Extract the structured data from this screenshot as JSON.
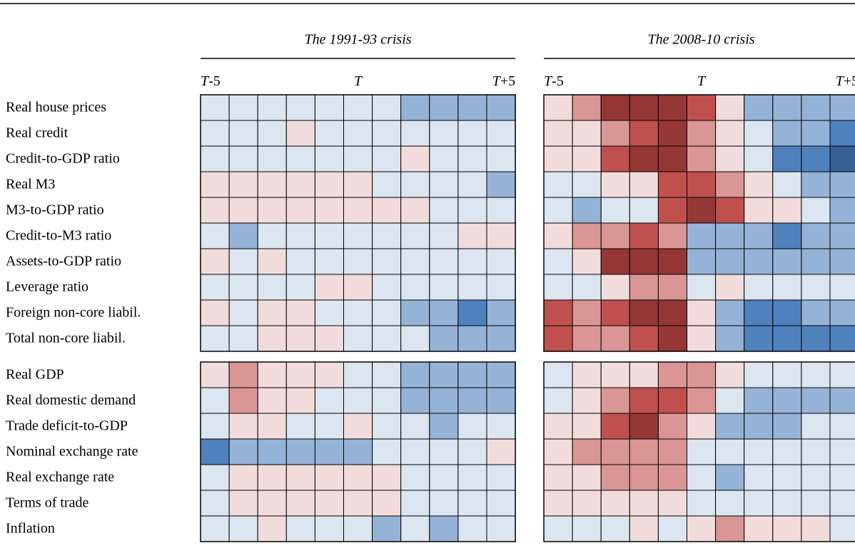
{
  "chart_data": {
    "type": "heatmap",
    "colors": {
      "-4": "#366092",
      "-3": "#4f81bd",
      "-2": "#95b3d7",
      "-1": "#dce6f1",
      "1": "#f2dcdb",
      "2": "#d99694",
      "3": "#c0504d",
      "4": "#953735"
    },
    "row_groups": [
      [
        "Real house prices",
        "Real credit",
        "Credit-to-GDP ratio",
        "Real M3",
        "M3-to-GDP ratio",
        "Credit-to-M3 ratio",
        "Assets-to-GDP ratio",
        "Leverage ratio",
        "Foreign non-core liabil.",
        "Total non-core liabil."
      ],
      [
        "Real GDP",
        "Real domestic demand",
        "Trade deficit-to-GDP",
        "Nominal exchange rate",
        "Real exchange rate",
        "Terms of trade",
        "Inflation"
      ]
    ],
    "panels": [
      {
        "title": "The 1991-93 crisis",
        "columns": [
          "T-5",
          null,
          null,
          null,
          null,
          "T",
          null,
          null,
          null,
          null,
          "T+5"
        ],
        "values": [
          [
            [
              -1,
              -1,
              -1,
              -1,
              -1,
              -1,
              -1,
              -2,
              -2,
              -2,
              -2
            ],
            [
              -1,
              -1,
              -1,
              1,
              -1,
              -1,
              -1,
              -1,
              -1,
              -1,
              -1
            ],
            [
              -1,
              -1,
              -1,
              -1,
              -1,
              -1,
              -1,
              1,
              -1,
              -1,
              -1
            ],
            [
              1,
              1,
              1,
              1,
              1,
              1,
              -1,
              -1,
              -1,
              -1,
              -2
            ],
            [
              1,
              1,
              1,
              1,
              1,
              1,
              1,
              1,
              -1,
              -1,
              -1
            ],
            [
              -1,
              -2,
              -1,
              -1,
              -1,
              -1,
              -1,
              -1,
              -1,
              1,
              1
            ],
            [
              1,
              -1,
              1,
              -1,
              -1,
              -1,
              -1,
              -1,
              -1,
              -1,
              -1
            ],
            [
              -1,
              -1,
              -1,
              -1,
              1,
              1,
              -1,
              -1,
              -1,
              -1,
              -1
            ],
            [
              1,
              -1,
              1,
              1,
              -1,
              -1,
              -1,
              -2,
              -2,
              -3,
              -2
            ],
            [
              -1,
              -1,
              1,
              1,
              1,
              -1,
              -1,
              -1,
              -2,
              -2,
              -2
            ]
          ],
          [
            [
              1,
              2,
              1,
              1,
              1,
              -1,
              -1,
              -2,
              -2,
              -2,
              -2
            ],
            [
              -1,
              2,
              1,
              1,
              -1,
              -1,
              -1,
              -2,
              -2,
              -2,
              -2
            ],
            [
              -1,
              1,
              1,
              -1,
              -1,
              1,
              -1,
              -1,
              -2,
              -1,
              -1
            ],
            [
              -3,
              -2,
              -2,
              -2,
              -2,
              -2,
              -1,
              -1,
              -1,
              -1,
              1
            ],
            [
              -1,
              1,
              1,
              1,
              1,
              1,
              1,
              -1,
              -1,
              -1,
              -1
            ],
            [
              -1,
              1,
              1,
              1,
              1,
              1,
              1,
              -1,
              -1,
              -1,
              -1
            ],
            [
              -1,
              -1,
              1,
              -1,
              -1,
              -1,
              -2,
              -1,
              -2,
              -1,
              -1
            ]
          ]
        ]
      },
      {
        "title": "The 2008-10 crisis",
        "columns": [
          "T-5",
          null,
          null,
          null,
          null,
          "T",
          null,
          null,
          null,
          null,
          "T+5"
        ],
        "values": [
          [
            [
              1,
              2,
              4,
              4,
              4,
              3,
              1,
              -2,
              -2,
              -2,
              -2
            ],
            [
              1,
              1,
              2,
              3,
              4,
              2,
              1,
              -1,
              -2,
              -2,
              -3
            ],
            [
              1,
              1,
              3,
              4,
              4,
              2,
              1,
              -1,
              -3,
              -3,
              -4
            ],
            [
              -1,
              -1,
              1,
              1,
              3,
              3,
              2,
              1,
              -1,
              -2,
              -2
            ],
            [
              -1,
              -2,
              -1,
              -1,
              3,
              4,
              3,
              1,
              1,
              -1,
              -2
            ],
            [
              1,
              2,
              2,
              3,
              2,
              -2,
              -2,
              -2,
              -3,
              -2,
              -2
            ],
            [
              -1,
              1,
              4,
              4,
              4,
              -2,
              -2,
              -2,
              -2,
              -2,
              -2
            ],
            [
              -1,
              -1,
              1,
              2,
              2,
              -1,
              1,
              -1,
              -1,
              -1,
              -1
            ],
            [
              3,
              2,
              3,
              4,
              4,
              1,
              -2,
              -3,
              -3,
              -2,
              -2
            ],
            [
              3,
              2,
              2,
              3,
              4,
              1,
              -2,
              -3,
              -3,
              -3,
              -3
            ]
          ],
          [
            [
              -1,
              1,
              1,
              1,
              2,
              2,
              1,
              -1,
              -1,
              -1,
              -1
            ],
            [
              -1,
              1,
              2,
              3,
              3,
              2,
              -1,
              -2,
              -2,
              -2,
              -2
            ],
            [
              1,
              1,
              3,
              4,
              2,
              1,
              -2,
              -2,
              -2,
              -1,
              -1
            ],
            [
              1,
              2,
              2,
              2,
              2,
              -1,
              -1,
              -1,
              -1,
              -1,
              -1
            ],
            [
              1,
              1,
              2,
              2,
              2,
              -1,
              -2,
              -1,
              -1,
              -1,
              -1
            ],
            [
              1,
              1,
              1,
              1,
              1,
              -1,
              -1,
              -1,
              -1,
              -1,
              -1
            ],
            [
              -1,
              -1,
              -1,
              1,
              -1,
              1,
              2,
              1,
              1,
              1,
              -1
            ]
          ]
        ]
      }
    ]
  }
}
